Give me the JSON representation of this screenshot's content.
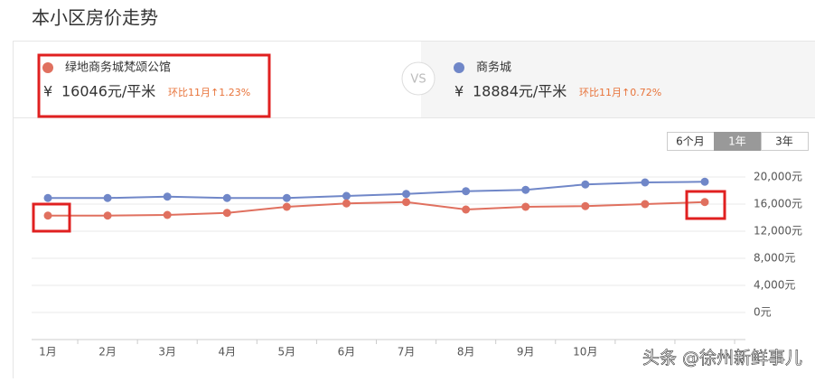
{
  "page": {
    "title": "本小区房价走势",
    "left": {
      "name": "绿地商务城梵颂公馆",
      "currency": "¥",
      "price": "16046元/平米",
      "change": "环比11月↑1.23%"
    },
    "vs": "VS",
    "right": {
      "name": "商务城",
      "currency": "¥",
      "price": "18884元/平米",
      "change": "环比11月↑0.72%"
    },
    "ranges": [
      "6个月",
      "1年",
      "3年"
    ],
    "watermark": "头条 @徐州新鲜事儿"
  },
  "chart_data": {
    "type": "line",
    "categories": [
      "1月",
      "2月",
      "3月",
      "4月",
      "5月",
      "6月",
      "7月",
      "8月",
      "9月",
      "10月",
      null,
      null
    ],
    "series": [
      {
        "name": "商务城",
        "color": "#7087c8",
        "values": [
          16900,
          16900,
          17100,
          16900,
          16900,
          17200,
          17500,
          17900,
          18100,
          18900,
          19200,
          19300
        ]
      },
      {
        "name": "绿地商务城梵颂公馆",
        "color": "#e0705f",
        "values": [
          14300,
          14300,
          14400,
          14700,
          15600,
          16100,
          16300,
          15200,
          15600,
          15700,
          16000,
          16300
        ]
      }
    ],
    "ylim": [
      -4000,
      20000
    ],
    "yticks": [
      {
        "value": 0,
        "label": "0元"
      },
      {
        "value": 4000,
        "label": "4,000元"
      },
      {
        "value": 8000,
        "label": "8,000元"
      },
      {
        "value": 12000,
        "label": "12,000元"
      },
      {
        "value": 16000,
        "label": "16,000元"
      },
      {
        "value": 20000,
        "label": "20,000元"
      }
    ],
    "grid": true
  }
}
